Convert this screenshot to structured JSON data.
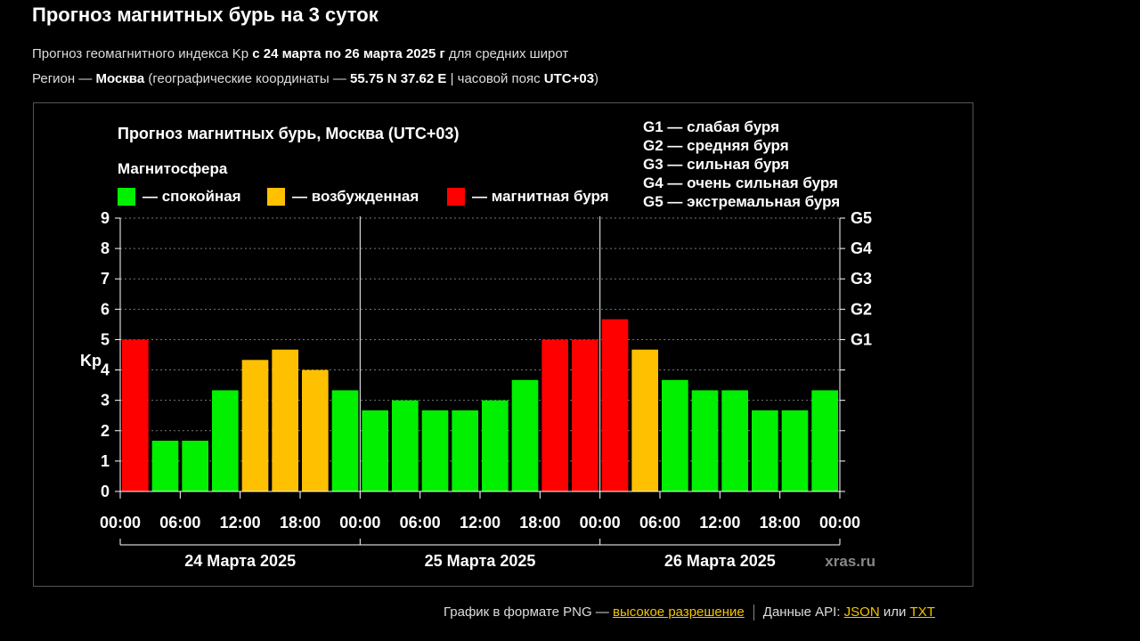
{
  "page": {
    "title": "Прогноз магнитных бурь на 3 суток",
    "subtitle": {
      "prefix": "Прогноз геомагнитного индекса Kp ",
      "range": "с 24 марта по 26 марта 2025 г",
      "suffix": " для средних широт"
    },
    "region": {
      "label": "Регион — ",
      "city": "Москва",
      "coords_label": " (географические координаты — ",
      "coords": "55.75 N 37.62 E",
      "tz_label": " | часовой пояс ",
      "tz": "UTC+03",
      "close": ")"
    }
  },
  "footer": {
    "text": "График в формате PNG — ",
    "hires_link": "высокое разрешение",
    "api_label": "Данные API: ",
    "json_link": "JSON",
    "or": " или ",
    "txt_link": "TXT"
  },
  "colors": {
    "calm": "#00f000",
    "excited": "#ffc000",
    "storm": "#ff0000",
    "background": "#000000",
    "grid": "#777777"
  },
  "chart_data": {
    "type": "bar",
    "title": "Прогноз магнитных бурь, Москва (UTC+03)",
    "ylabel": "Kp",
    "ylim": [
      0,
      9
    ],
    "yticks": [
      "0",
      "1",
      "2",
      "3",
      "4",
      "5",
      "6",
      "7",
      "8",
      "9"
    ],
    "g_levels": [
      {
        "label": "G1",
        "kp": 5
      },
      {
        "label": "G2",
        "kp": 6
      },
      {
        "label": "G3",
        "kp": 7
      },
      {
        "label": "G4",
        "kp": 8
      },
      {
        "label": "G5",
        "kp": 9
      }
    ],
    "legend_title": "Магнитосфера",
    "legend": [
      {
        "label": "— спокойная",
        "color": "#00f000"
      },
      {
        "label": "— возбужденная",
        "color": "#ffc000"
      },
      {
        "label": "— магнитная буря",
        "color": "#ff0000"
      }
    ],
    "g_legend": [
      "G1 — слабая буря",
      "G2 — средняя буря",
      "G3 — сильная буря",
      "G4 — очень сильная буря",
      "G5 — экстремальная буря"
    ],
    "days": [
      "24 Марта 2025",
      "25 Марта 2025",
      "26 Марта 2025"
    ],
    "x_ticks": [
      "00:00",
      "06:00",
      "12:00",
      "18:00",
      "00:00",
      "06:00",
      "12:00",
      "18:00",
      "00:00",
      "06:00",
      "12:00",
      "18:00",
      "00:00"
    ],
    "values": [
      5.0,
      1.67,
      1.67,
      3.33,
      4.33,
      4.67,
      4.0,
      3.33,
      2.67,
      3.0,
      2.67,
      2.67,
      3.0,
      3.67,
      5.0,
      5.0,
      5.67,
      4.67,
      3.67,
      3.33,
      3.33,
      2.67,
      2.67,
      3.33
    ],
    "watermark": "xras.ru"
  }
}
